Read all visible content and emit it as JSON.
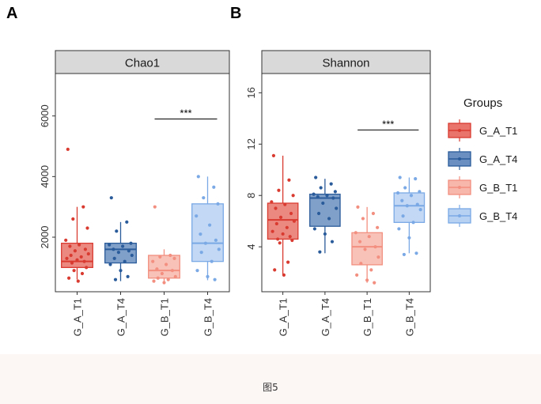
{
  "panel_letters": [
    "A",
    "B"
  ],
  "legend": {
    "title": "Groups",
    "items": [
      {
        "label": "G_A_T1",
        "stroke": "#d93b31",
        "fill": "#e8746b"
      },
      {
        "label": "G_A_T4",
        "stroke": "#2a5b9a",
        "fill": "#6b8fc0"
      },
      {
        "label": "G_B_T1",
        "stroke": "#f28f80",
        "fill": "#f8b7ab"
      },
      {
        "label": "G_B_T4",
        "stroke": "#7aa9e6",
        "fill": "#b7d1f2"
      }
    ]
  },
  "caption": "图5",
  "chart_data": [
    {
      "type": "boxplot",
      "panel": "A",
      "title": "Chao1",
      "categories": [
        "G_A_T1",
        "G_A_T4",
        "G_B_T1",
        "G_B_T4"
      ],
      "ylim": [
        200,
        7400
      ],
      "yticks": [
        2000,
        4000,
        6000
      ],
      "significance": {
        "label": "***",
        "between": [
          "G_B_T1",
          "G_B_T4"
        ],
        "y": 5900
      },
      "boxes": [
        {
          "group": "G_A_T1",
          "whisker_low": 600,
          "q1": 1000,
          "median": 1200,
          "q3": 1800,
          "whisker_high": 3000
        },
        {
          "group": "G_A_T4",
          "whisker_low": 550,
          "q1": 1150,
          "median": 1600,
          "q3": 1800,
          "whisker_high": 2500
        },
        {
          "group": "G_B_T1",
          "whisker_low": 480,
          "q1": 650,
          "median": 900,
          "q3": 1400,
          "whisker_high": 1600
        },
        {
          "group": "G_B_T4",
          "whisker_low": 580,
          "q1": 1200,
          "median": 1800,
          "q3": 3100,
          "whisker_high": 4000
        }
      ],
      "points": [
        {
          "group": "G_A_T1",
          "values": [
            4900,
            3000,
            2600,
            2300,
            1900,
            1750,
            1700,
            1600,
            1550,
            1450,
            1400,
            1350,
            1300,
            1250,
            1200,
            1150,
            1000,
            900,
            800,
            650,
            550
          ]
        },
        {
          "group": "G_A_T4",
          "values": [
            3300,
            2500,
            2200,
            1800,
            1750,
            1700,
            1600,
            1550,
            1500,
            1400,
            1300,
            1200,
            1100,
            900,
            700,
            600
          ]
        },
        {
          "group": "G_B_T1",
          "values": [
            3000,
            1400,
            1350,
            1300,
            1200,
            1100,
            950,
            900,
            800,
            700,
            650,
            600,
            550,
            500
          ]
        },
        {
          "group": "G_B_T4",
          "values": [
            4000,
            3650,
            3300,
            3100,
            2700,
            2400,
            2100,
            1900,
            1800,
            1600,
            1500,
            1200,
            900,
            700,
            600
          ]
        }
      ]
    },
    {
      "type": "boxplot",
      "panel": "B",
      "title": "Shannon",
      "categories": [
        "G_A_T1",
        "G_A_T4",
        "G_B_T1",
        "G_B_T4"
      ],
      "ylim": [
        0.5,
        17.5
      ],
      "yticks": [
        4,
        8,
        12,
        16
      ],
      "significance": {
        "label": "***",
        "between": [
          "G_B_T1",
          "G_B_T4"
        ],
        "y": 13.1
      },
      "boxes": [
        {
          "group": "G_A_T1",
          "whisker_low": 1.8,
          "q1": 4.6,
          "median": 6.1,
          "q3": 7.4,
          "whisker_high": 11.1
        },
        {
          "group": "G_A_T4",
          "whisker_low": 3.5,
          "q1": 5.6,
          "median": 7.8,
          "q3": 8.1,
          "whisker_high": 9.3
        },
        {
          "group": "G_B_T1",
          "whisker_low": 1.2,
          "q1": 2.6,
          "median": 4.0,
          "q3": 5.1,
          "whisker_high": 7.1
        },
        {
          "group": "G_B_T4",
          "whisker_low": 3.5,
          "q1": 5.9,
          "median": 7.2,
          "q3": 8.2,
          "whisker_high": 9.4
        }
      ],
      "points": [
        {
          "group": "G_A_T1",
          "values": [
            11.1,
            9.2,
            8.4,
            8.0,
            7.5,
            7.3,
            7.0,
            6.6,
            6.3,
            6.0,
            5.8,
            5.5,
            5.2,
            5.0,
            4.8,
            4.6,
            4.5,
            4.3,
            2.8,
            2.2,
            1.8
          ]
        },
        {
          "group": "G_A_T4",
          "values": [
            9.4,
            8.9,
            8.6,
            8.3,
            8.1,
            8.0,
            7.9,
            7.8,
            7.4,
            7.0,
            6.6,
            6.2,
            5.4,
            5.0,
            4.4,
            3.6
          ]
        },
        {
          "group": "G_B_T1",
          "values": [
            7.1,
            6.6,
            6.2,
            5.5,
            5.1,
            4.8,
            4.4,
            4.0,
            3.8,
            3.2,
            2.7,
            2.2,
            1.8,
            1.4,
            1.2
          ]
        },
        {
          "group": "G_B_T4",
          "values": [
            9.4,
            9.3,
            8.6,
            8.3,
            8.2,
            8.0,
            7.6,
            7.3,
            7.2,
            6.9,
            6.4,
            5.9,
            5.4,
            4.7,
            3.5,
            3.4
          ]
        }
      ]
    }
  ]
}
